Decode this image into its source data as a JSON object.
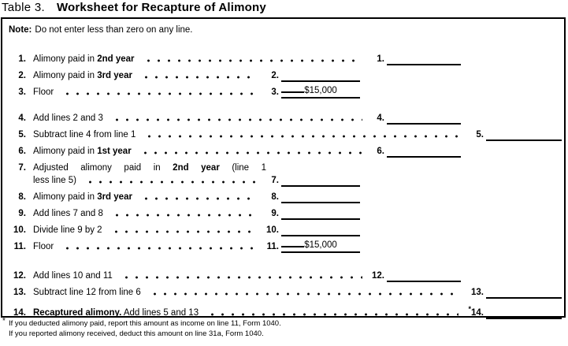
{
  "title": {
    "prefix": "Table 3.",
    "main": "Worksheet for Recapture of Alimony"
  },
  "note": {
    "label": "Note:",
    "text": "Do not enter less than zero on any line."
  },
  "worksheet": {
    "rows": [
      {
        "num": "1.",
        "section": 1,
        "parts": [
          {
            "text": "Alimony paid in "
          },
          {
            "text": "2nd year",
            "bold": true
          }
        ],
        "entry": {
          "num": "1.",
          "col": "r1",
          "value": ""
        }
      },
      {
        "num": "2.",
        "section": 1,
        "parts": [
          {
            "text": "Alimony paid in "
          },
          {
            "text": "3rd year",
            "bold": true
          }
        ],
        "entry": {
          "num": "2.",
          "col": "mid",
          "value": ""
        }
      },
      {
        "num": "3.",
        "section": 1,
        "parts": [
          {
            "text": "Floor"
          }
        ],
        "entry": {
          "num": "3.",
          "col": "mid",
          "value": "$15,000"
        }
      },
      {
        "num": "4.",
        "section": 2,
        "parts": [
          {
            "text": "Add lines 2 and 3"
          }
        ],
        "entry": {
          "num": "4.",
          "col": "r1",
          "value": ""
        }
      },
      {
        "num": "5.",
        "section": 2,
        "parts": [
          {
            "text": "Subtract line 4 from line 1"
          }
        ],
        "entry": {
          "num": "5.",
          "col": "r2",
          "value": ""
        }
      },
      {
        "num": "6.",
        "section": 2,
        "parts": [
          {
            "text": "Alimony paid in "
          },
          {
            "text": "1st year",
            "bold": true
          }
        ],
        "entry": {
          "num": "6.",
          "col": "r1",
          "value": ""
        }
      },
      {
        "num": "7.",
        "section": 2,
        "parts": [
          {
            "text": "Adjusted alimony paid in "
          },
          {
            "text": "2nd year",
            "bold": true
          },
          {
            "text": " (line 1"
          }
        ],
        "label2": "less line 5)",
        "entry": {
          "num": "7.",
          "col": "mid",
          "value": ""
        }
      },
      {
        "num": "8.",
        "section": 2,
        "parts": [
          {
            "text": "Alimony paid in "
          },
          {
            "text": "3rd year",
            "bold": true
          }
        ],
        "entry": {
          "num": "8.",
          "col": "mid",
          "value": ""
        }
      },
      {
        "num": "9.",
        "section": 2,
        "parts": [
          {
            "text": "Add lines 7 and 8"
          }
        ],
        "entry": {
          "num": "9.",
          "col": "mid",
          "value": ""
        }
      },
      {
        "num": "10.",
        "section": 2,
        "parts": [
          {
            "text": "Divide line 9 by 2"
          }
        ],
        "entry": {
          "num": "10.",
          "col": "mid",
          "value": ""
        }
      },
      {
        "num": "11.",
        "section": 2,
        "parts": [
          {
            "text": "Floor"
          }
        ],
        "entry": {
          "num": "11.",
          "col": "mid",
          "value": "$15,000"
        }
      },
      {
        "num": "12.",
        "section": 3,
        "parts": [
          {
            "text": "Add lines 10 and 11"
          }
        ],
        "entry": {
          "num": "12.",
          "col": "r1",
          "value": ""
        }
      },
      {
        "num": "13.",
        "section": 3,
        "parts": [
          {
            "text": "Subtract line 12 from line 6"
          }
        ],
        "entry": {
          "num": "13.",
          "col": "r2",
          "value": ""
        }
      },
      {
        "num": "14.",
        "section": 3,
        "parts": [
          {
            "text": "Recaptured alimony.",
            "bold": true
          },
          {
            "text": " Add lines 5 and 13"
          }
        ],
        "entry": {
          "num": "14.",
          "prefix": "*",
          "col": "r2",
          "value": ""
        }
      }
    ]
  },
  "footnote": {
    "marker": "*",
    "lines": [
      "If you deducted alimony paid, report this amount as income on line 11, Form 1040.",
      "If you reported alimony received, deduct this amount on line 31a, Form 1040."
    ]
  },
  "colors": {
    "ink": "#000000",
    "paper": "#ffffff"
  }
}
